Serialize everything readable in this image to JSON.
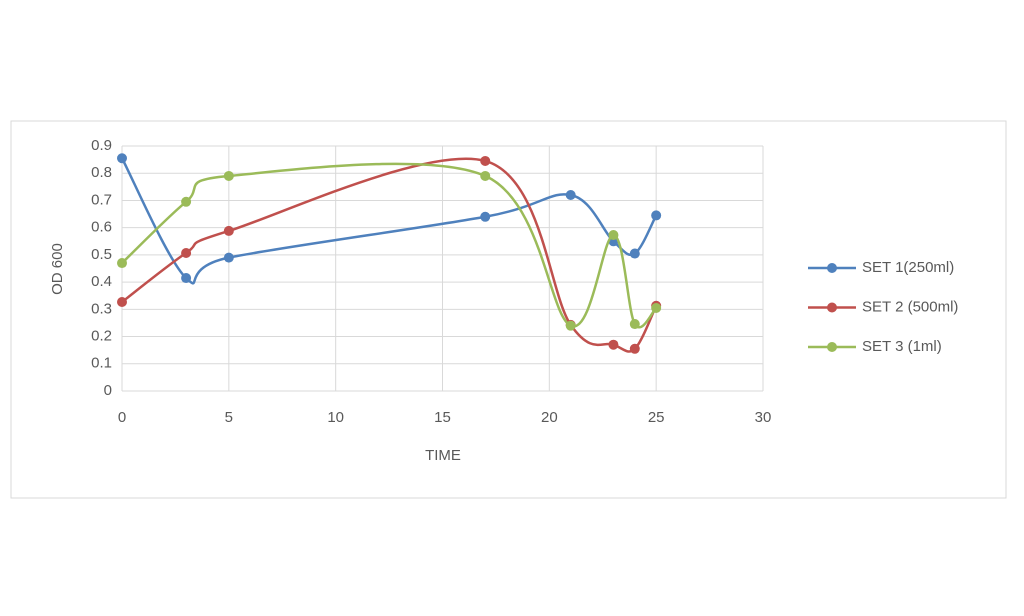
{
  "chart_data": {
    "type": "scatter-smooth",
    "x_label": "TIME",
    "y_label": "OD 600",
    "x": [
      0,
      3,
      5,
      17,
      21,
      23,
      24,
      25
    ],
    "series": [
      {
        "name": "SET 1(250ml)",
        "color": "#4f81bd",
        "values": [
          0.855,
          0.415,
          0.49,
          0.64,
          0.72,
          0.55,
          0.505,
          0.645
        ]
      },
      {
        "name": "SET 2 (500ml)",
        "color": "#c0504d",
        "values": [
          0.327,
          0.507,
          0.588,
          0.845,
          0.243,
          0.17,
          0.155,
          0.313
        ]
      },
      {
        "name": "SET 3 (1ml)",
        "color": "#9bbb59",
        "values": [
          0.47,
          0.695,
          0.79,
          0.79,
          0.24,
          0.573,
          0.246,
          0.305
        ]
      }
    ],
    "xlim": [
      0,
      30
    ],
    "xticks": [
      0,
      5,
      10,
      15,
      20,
      25,
      30
    ],
    "ylim": [
      0,
      0.9
    ],
    "yticks": [
      0,
      0.1,
      0.2,
      0.3,
      0.4,
      0.5,
      0.6,
      0.7,
      0.8,
      0.9
    ],
    "grid": true,
    "legend": "right"
  }
}
